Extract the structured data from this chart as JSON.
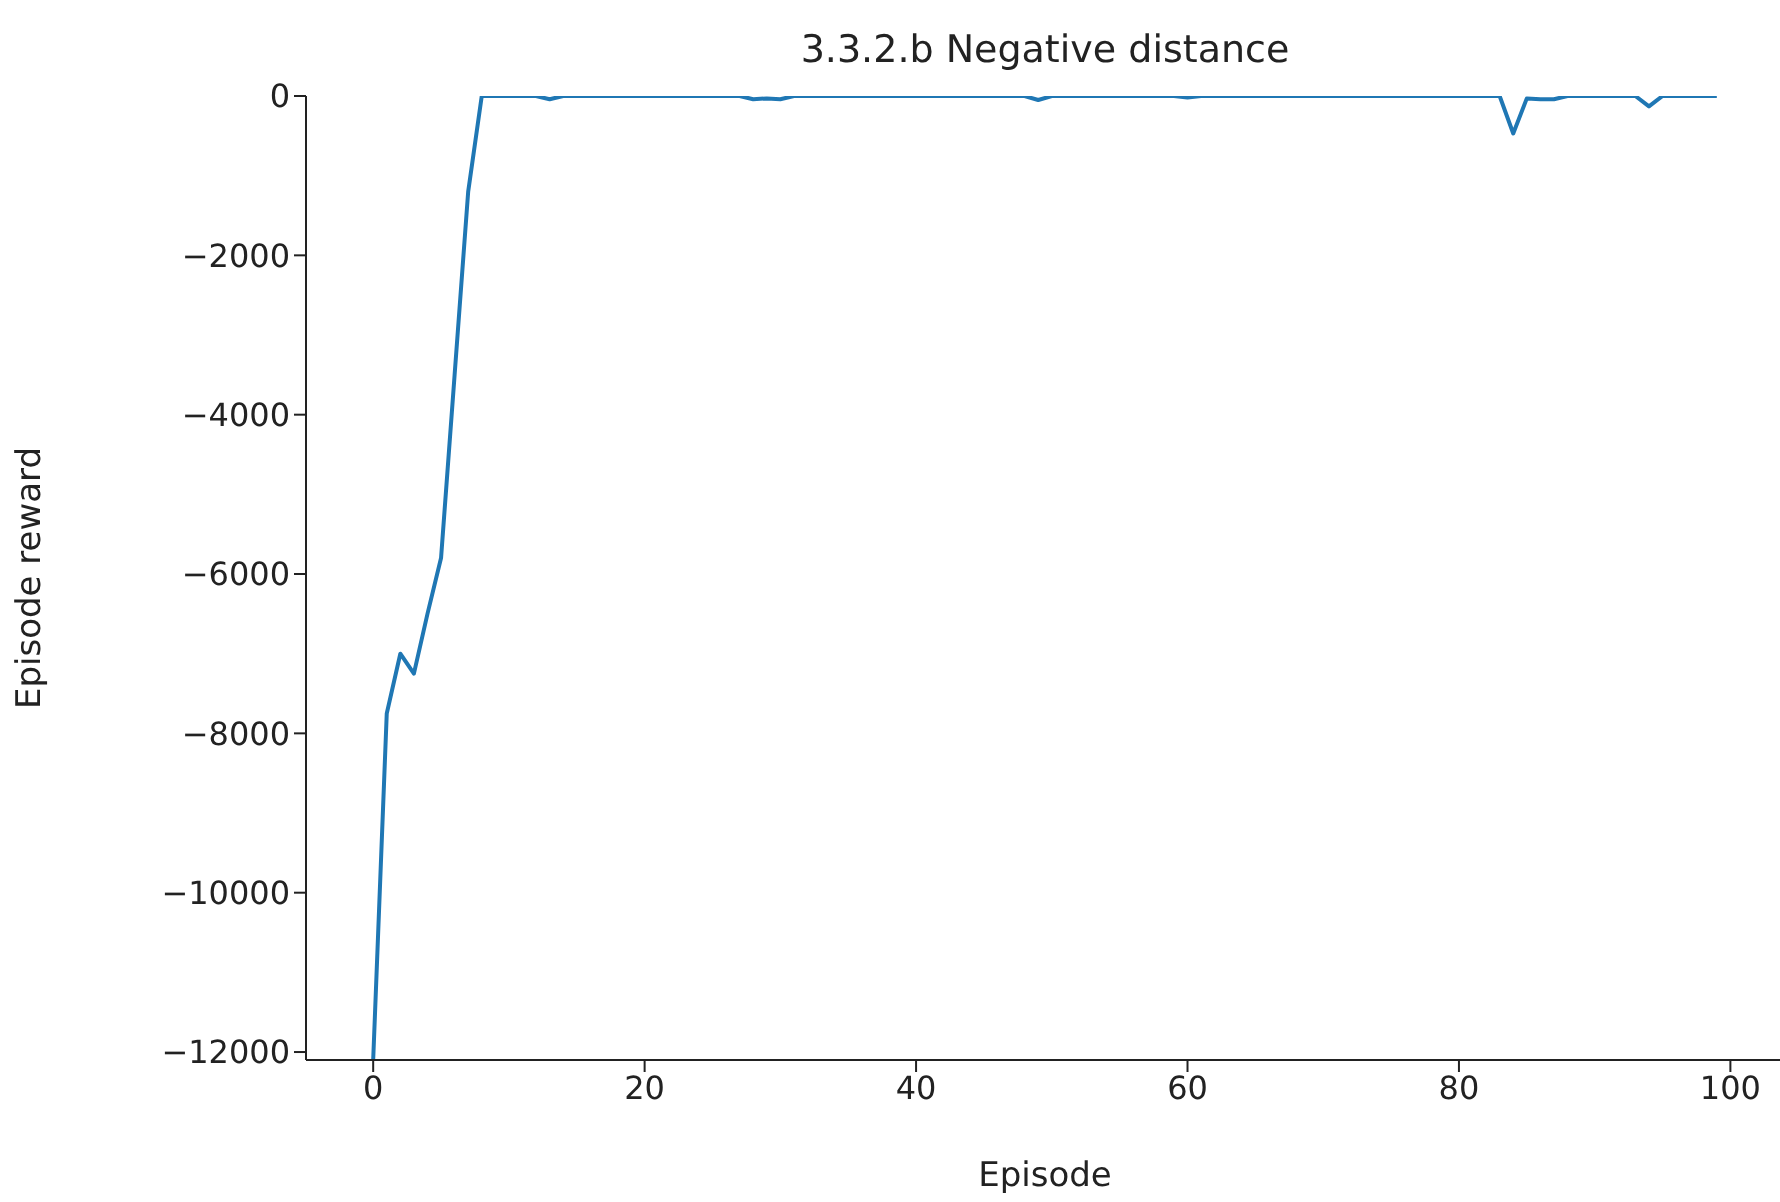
{
  "chart_data": {
    "type": "line",
    "title": "3.3.2.b Negative distance",
    "xlabel": "Episode",
    "ylabel": "Episode reward",
    "x": [
      0,
      1,
      2,
      3,
      4,
      5,
      6,
      7,
      8,
      9,
      10,
      11,
      12,
      13,
      14,
      15,
      16,
      17,
      18,
      19,
      20,
      21,
      22,
      23,
      24,
      25,
      26,
      27,
      28,
      29,
      30,
      31,
      32,
      33,
      34,
      35,
      36,
      37,
      38,
      39,
      40,
      41,
      42,
      43,
      44,
      45,
      46,
      47,
      48,
      49,
      50,
      51,
      52,
      53,
      54,
      55,
      56,
      57,
      58,
      59,
      60,
      61,
      62,
      63,
      64,
      65,
      66,
      67,
      68,
      69,
      70,
      71,
      72,
      73,
      74,
      75,
      76,
      77,
      78,
      79,
      80,
      81,
      82,
      83,
      84,
      85,
      86,
      87,
      88,
      89,
      90,
      91,
      92,
      93,
      94,
      95,
      96,
      97,
      98,
      99
    ],
    "series": [
      {
        "color": "#1f77b4",
        "values": [
          -12100,
          -7750,
          -7000,
          -7250,
          -6500,
          -5800,
          -3500,
          -1200,
          0,
          0,
          0,
          0,
          0,
          -40,
          0,
          0,
          0,
          0,
          0,
          0,
          0,
          0,
          0,
          0,
          0,
          0,
          0,
          0,
          -40,
          -30,
          -40,
          0,
          0,
          0,
          0,
          0,
          0,
          0,
          0,
          0,
          0,
          0,
          0,
          0,
          0,
          0,
          0,
          0,
          0,
          -50,
          0,
          0,
          0,
          0,
          0,
          0,
          0,
          0,
          0,
          0,
          -20,
          0,
          0,
          0,
          0,
          0,
          0,
          0,
          0,
          0,
          0,
          0,
          0,
          0,
          0,
          0,
          0,
          0,
          0,
          0,
          0,
          0,
          0,
          0,
          -470,
          -30,
          -40,
          -40,
          0,
          0,
          0,
          0,
          0,
          0,
          -130,
          0,
          0,
          0,
          0,
          0
        ]
      }
    ],
    "xlim": [
      -4.95,
      103.95
    ],
    "xticks": [
      0,
      20,
      40,
      60,
      80,
      100
    ],
    "ylim": [
      -12100,
      0
    ],
    "yticks": [
      0,
      {
        "value": -2000,
        "label": "−2000"
      },
      {
        "value": -4000,
        "label": "−4000"
      },
      {
        "value": -6000,
        "label": "−6000"
      },
      {
        "value": -8000,
        "label": "−8000"
      },
      {
        "value": -10000,
        "label": "−10000"
      },
      {
        "value": -12000,
        "label": "−12000"
      }
    ],
    "grid": false,
    "legend": false,
    "marker": "none",
    "line_style": "solid"
  }
}
